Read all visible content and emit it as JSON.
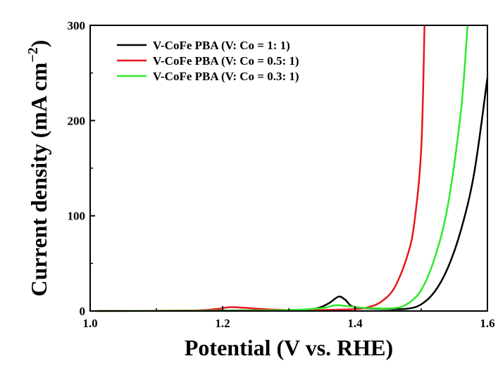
{
  "chart_data": {
    "type": "line",
    "xlabel": "Potential (V vs. RHE)",
    "ylabel_main": "Current density (mA cm",
    "ylabel_sup": "−2",
    "ylabel_close": ")",
    "xlim": [
      1.0,
      1.6
    ],
    "ylim": [
      0,
      300
    ],
    "x_ticks": [
      1.0,
      1.2,
      1.4,
      1.6
    ],
    "x_tick_labels": [
      "1.0",
      "1.2",
      "1.4",
      "1.6"
    ],
    "y_ticks": [
      0,
      100,
      200,
      300
    ],
    "y_tick_labels": [
      "0",
      "100",
      "200",
      "300"
    ],
    "grid": false,
    "legend_position": "top-left",
    "series": [
      {
        "name": "V-CoFe PBA (V: Co = 1: 1)",
        "color": "#000000",
        "points": [
          [
            1.01,
            0
          ],
          [
            1.1,
            0.2
          ],
          [
            1.2,
            0.5
          ],
          [
            1.3,
            1.0
          ],
          [
            1.34,
            2.5
          ],
          [
            1.36,
            8
          ],
          [
            1.375,
            15
          ],
          [
            1.385,
            12
          ],
          [
            1.4,
            4
          ],
          [
            1.45,
            2
          ],
          [
            1.48,
            2.5
          ],
          [
            1.5,
            7
          ],
          [
            1.52,
            20
          ],
          [
            1.54,
            45
          ],
          [
            1.56,
            85
          ],
          [
            1.58,
            145
          ],
          [
            1.6,
            245
          ]
        ]
      },
      {
        "name": "V-CoFe PBA (V: Co = 0.5: 1)",
        "color": "#e8161c",
        "points": [
          [
            1.01,
            0
          ],
          [
            1.15,
            0.5
          ],
          [
            1.19,
            2
          ],
          [
            1.21,
            4
          ],
          [
            1.23,
            3.5
          ],
          [
            1.26,
            2
          ],
          [
            1.3,
            1
          ],
          [
            1.35,
            1
          ],
          [
            1.4,
            2
          ],
          [
            1.42,
            4
          ],
          [
            1.44,
            10
          ],
          [
            1.46,
            25
          ],
          [
            1.48,
            60
          ],
          [
            1.49,
            95
          ],
          [
            1.5,
            170
          ],
          [
            1.505,
            300
          ]
        ]
      },
      {
        "name": "V-CoFe PBA (V: Co = 0.3: 1)",
        "color": "#2fe92a",
        "points": [
          [
            1.01,
            0
          ],
          [
            1.2,
            0.3
          ],
          [
            1.3,
            1
          ],
          [
            1.35,
            3
          ],
          [
            1.37,
            6
          ],
          [
            1.39,
            5
          ],
          [
            1.42,
            3
          ],
          [
            1.46,
            3
          ],
          [
            1.48,
            8
          ],
          [
            1.5,
            22
          ],
          [
            1.52,
            55
          ],
          [
            1.54,
            110
          ],
          [
            1.56,
            210
          ],
          [
            1.57,
            300
          ]
        ]
      }
    ]
  }
}
